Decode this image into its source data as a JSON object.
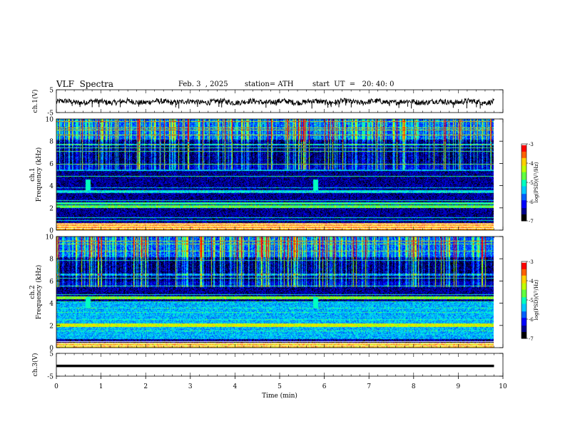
{
  "header": {
    "title": "VLF  Spectra",
    "date": "Feb. 3  , 2025",
    "station": "station= ATH",
    "start": "start  UT  =   20: 40: 0"
  },
  "chart_data": [
    {
      "type": "line",
      "id": "ch1",
      "ylabel": "ch.1(V)",
      "ylim": [
        -5,
        5
      ],
      "y_ticks": [
        "5",
        "-5"
      ],
      "x_range_min": [
        0,
        9.8
      ],
      "baseline_v": -0.3,
      "amplitude_v": 1.2
    },
    {
      "type": "heatmap",
      "id": "ch1-spectrogram",
      "ylabel": "ch.1\nFrequency (kHz)",
      "ylabel_lines": [
        "ch.1",
        "Frequency  (kHz)"
      ],
      "ylim": [
        0,
        10
      ],
      "y_ticks": [
        "0",
        "2",
        "4",
        "6",
        "8",
        "10"
      ],
      "x_range_min": [
        0,
        9.8
      ],
      "colorbar": {
        "label": "log(PSD)(V²/Hz)",
        "range": [
          -7,
          -3
        ],
        "ticks": [
          "-3",
          "-4",
          "-5",
          "-6",
          "-7"
        ]
      },
      "features": "dense impulsive broadband sferics; strong narrowband lines near 0.5, 2.1-2.4 kHz; low-intensity band 6-8 kHz"
    },
    {
      "type": "heatmap",
      "id": "ch2-spectrogram",
      "ylabel": "ch.2\nFrequency (kHz)",
      "ylabel_lines": [
        "ch.2",
        "Frequency  (kHz)"
      ],
      "ylim": [
        0,
        10
      ],
      "y_ticks": [
        "0",
        "2",
        "4",
        "6",
        "8",
        "10"
      ],
      "x_range_min": [
        0,
        9.8
      ],
      "colorbar": {
        "label": "log(PSD)(V²/Hz)",
        "range": [
          -7,
          -3
        ],
        "ticks": [
          "-3",
          "-4",
          "-5",
          "-6",
          "-7"
        ]
      },
      "features": "dense impulsive broadband sferics; strong narrowband lines near 2.0-2.2 and 4.5 kHz"
    },
    {
      "type": "line",
      "id": "ch3",
      "ylabel": "ch.3(V)",
      "ylim": [
        -5,
        5
      ],
      "y_ticks": [
        "5",
        "-5"
      ],
      "x_range_min": [
        0,
        9.8
      ],
      "baseline_v": -0.5,
      "amplitude_v": 0.05
    }
  ],
  "x_axis": {
    "label": "Time  (min)",
    "range": [
      0,
      10
    ],
    "ticks": [
      "0",
      "1",
      "2",
      "3",
      "4",
      "5",
      "6",
      "7",
      "8",
      "9",
      "10"
    ]
  },
  "colors": {
    "colormap": [
      "#000000",
      "#00008a",
      "#0000ff",
      "#0060ff",
      "#00c8ff",
      "#00ffc0",
      "#60ff40",
      "#c0ff00",
      "#ffd000",
      "#ff6000",
      "#ff0000",
      "#ffffff"
    ],
    "trace": "#000000"
  }
}
